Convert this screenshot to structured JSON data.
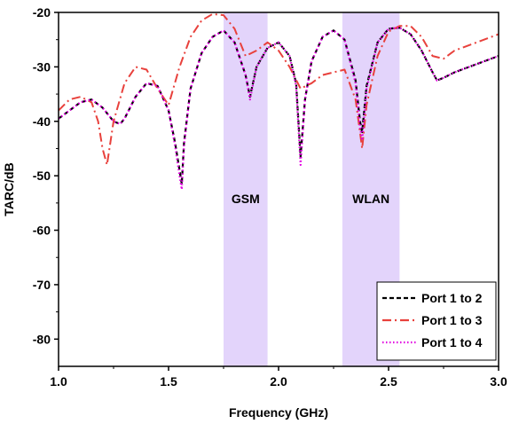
{
  "chart_data": {
    "type": "line",
    "title": "",
    "xlabel": "Frequency (GHz)",
    "ylabel": "TARC/dB",
    "xlim": [
      1.0,
      3.0
    ],
    "ylim": [
      -85,
      -20
    ],
    "x_ticks": [
      1.0,
      1.5,
      2.0,
      2.5,
      3.0
    ],
    "x_tick_labels": [
      "1.0",
      "1.5",
      "2.0",
      "2.5",
      "3.0"
    ],
    "y_ticks": [
      -80,
      -70,
      -60,
      -50,
      -40,
      -30,
      -20
    ],
    "y_tick_labels": [
      "-80",
      "-70",
      "-60",
      "-50",
      "-40",
      "-30",
      "-20"
    ],
    "grid": false,
    "legend_position": "bottom-right",
    "bands": [
      {
        "label": "GSM",
        "x_range": [
          1.75,
          1.95
        ],
        "color": "#e3d4fb"
      },
      {
        "label": "WLAN",
        "x_range": [
          2.29,
          2.55
        ],
        "color": "#e3d4fb"
      }
    ],
    "series": [
      {
        "name": "Port 1 to 2",
        "color": "#000000",
        "style": "dashed",
        "x": [
          1.0,
          1.05,
          1.1,
          1.15,
          1.2,
          1.25,
          1.28,
          1.3,
          1.35,
          1.4,
          1.45,
          1.5,
          1.53,
          1.55,
          1.56,
          1.57,
          1.6,
          1.65,
          1.7,
          1.75,
          1.8,
          1.85,
          1.87,
          1.9,
          1.95,
          2.0,
          2.05,
          2.08,
          2.1,
          2.12,
          2.15,
          2.2,
          2.25,
          2.3,
          2.35,
          2.37,
          2.38,
          2.4,
          2.45,
          2.5,
          2.55,
          2.6,
          2.65,
          2.7,
          2.72,
          2.75,
          2.8,
          2.9,
          3.0
        ],
        "values": [
          -39.5,
          -38.0,
          -36.5,
          -36.0,
          -37.5,
          -40.0,
          -40.5,
          -39.5,
          -35.5,
          -33.0,
          -33.5,
          -38.0,
          -44.0,
          -49.0,
          -51.5,
          -44.0,
          -34.0,
          -27.5,
          -24.5,
          -23.3,
          -25.5,
          -31.5,
          -35.5,
          -30.0,
          -26.5,
          -25.5,
          -28.0,
          -33.0,
          -46.5,
          -36.0,
          -29.0,
          -24.5,
          -23.3,
          -25.0,
          -32.5,
          -40.0,
          -42.0,
          -33.5,
          -25.5,
          -23.0,
          -22.8,
          -24.0,
          -27.0,
          -31.0,
          -32.5,
          -32.0,
          -31.0,
          -29.5,
          -28.0
        ]
      },
      {
        "name": "Port 1 to 3",
        "color": "#e8413c",
        "style": "dashdot",
        "x": [
          1.0,
          1.05,
          1.1,
          1.15,
          1.18,
          1.2,
          1.22,
          1.25,
          1.3,
          1.35,
          1.4,
          1.45,
          1.5,
          1.55,
          1.6,
          1.65,
          1.7,
          1.75,
          1.8,
          1.85,
          1.9,
          1.95,
          2.0,
          2.05,
          2.1,
          2.15,
          2.2,
          2.25,
          2.3,
          2.35,
          2.37,
          2.38,
          2.4,
          2.45,
          2.5,
          2.55,
          2.6,
          2.65,
          2.7,
          2.75,
          2.8,
          2.9,
          3.0
        ],
        "values": [
          -38.0,
          -36.0,
          -35.5,
          -36.5,
          -40.0,
          -45.0,
          -48.0,
          -40.0,
          -33.0,
          -30.0,
          -30.5,
          -34.0,
          -37.0,
          -30.0,
          -24.5,
          -21.5,
          -20.3,
          -20.5,
          -23.0,
          -28.0,
          -27.0,
          -25.5,
          -27.0,
          -30.0,
          -34.0,
          -33.0,
          -31.5,
          -31.0,
          -30.5,
          -36.0,
          -42.0,
          -45.0,
          -37.0,
          -28.0,
          -23.5,
          -22.5,
          -22.5,
          -24.5,
          -28.0,
          -28.5,
          -27.0,
          -25.5,
          -24.0
        ]
      },
      {
        "name": "Port 1 to 4",
        "color": "#e100e1",
        "style": "dotted",
        "x": [
          1.0,
          1.05,
          1.1,
          1.15,
          1.2,
          1.25,
          1.28,
          1.3,
          1.35,
          1.4,
          1.45,
          1.5,
          1.53,
          1.55,
          1.56,
          1.57,
          1.6,
          1.65,
          1.7,
          1.75,
          1.8,
          1.85,
          1.87,
          1.9,
          1.95,
          2.0,
          2.05,
          2.08,
          2.1,
          2.12,
          2.15,
          2.2,
          2.25,
          2.3,
          2.35,
          2.37,
          2.38,
          2.4,
          2.45,
          2.5,
          2.55,
          2.6,
          2.65,
          2.7,
          2.72,
          2.75,
          2.8,
          2.9,
          3.0
        ],
        "values": [
          -39.5,
          -38.0,
          -36.5,
          -36.0,
          -37.5,
          -40.0,
          -40.5,
          -39.5,
          -35.5,
          -33.0,
          -33.5,
          -38.0,
          -44.5,
          -50.0,
          -52.5,
          -44.5,
          -34.0,
          -27.5,
          -24.5,
          -23.3,
          -25.5,
          -31.5,
          -36.0,
          -30.0,
          -26.5,
          -25.5,
          -28.0,
          -33.5,
          -48.0,
          -36.0,
          -29.0,
          -24.5,
          -23.3,
          -25.0,
          -33.0,
          -41.0,
          -43.5,
          -34.0,
          -25.5,
          -23.0,
          -22.8,
          -24.0,
          -27.0,
          -31.0,
          -32.5,
          -32.0,
          -31.0,
          -29.5,
          -28.0
        ]
      }
    ]
  }
}
